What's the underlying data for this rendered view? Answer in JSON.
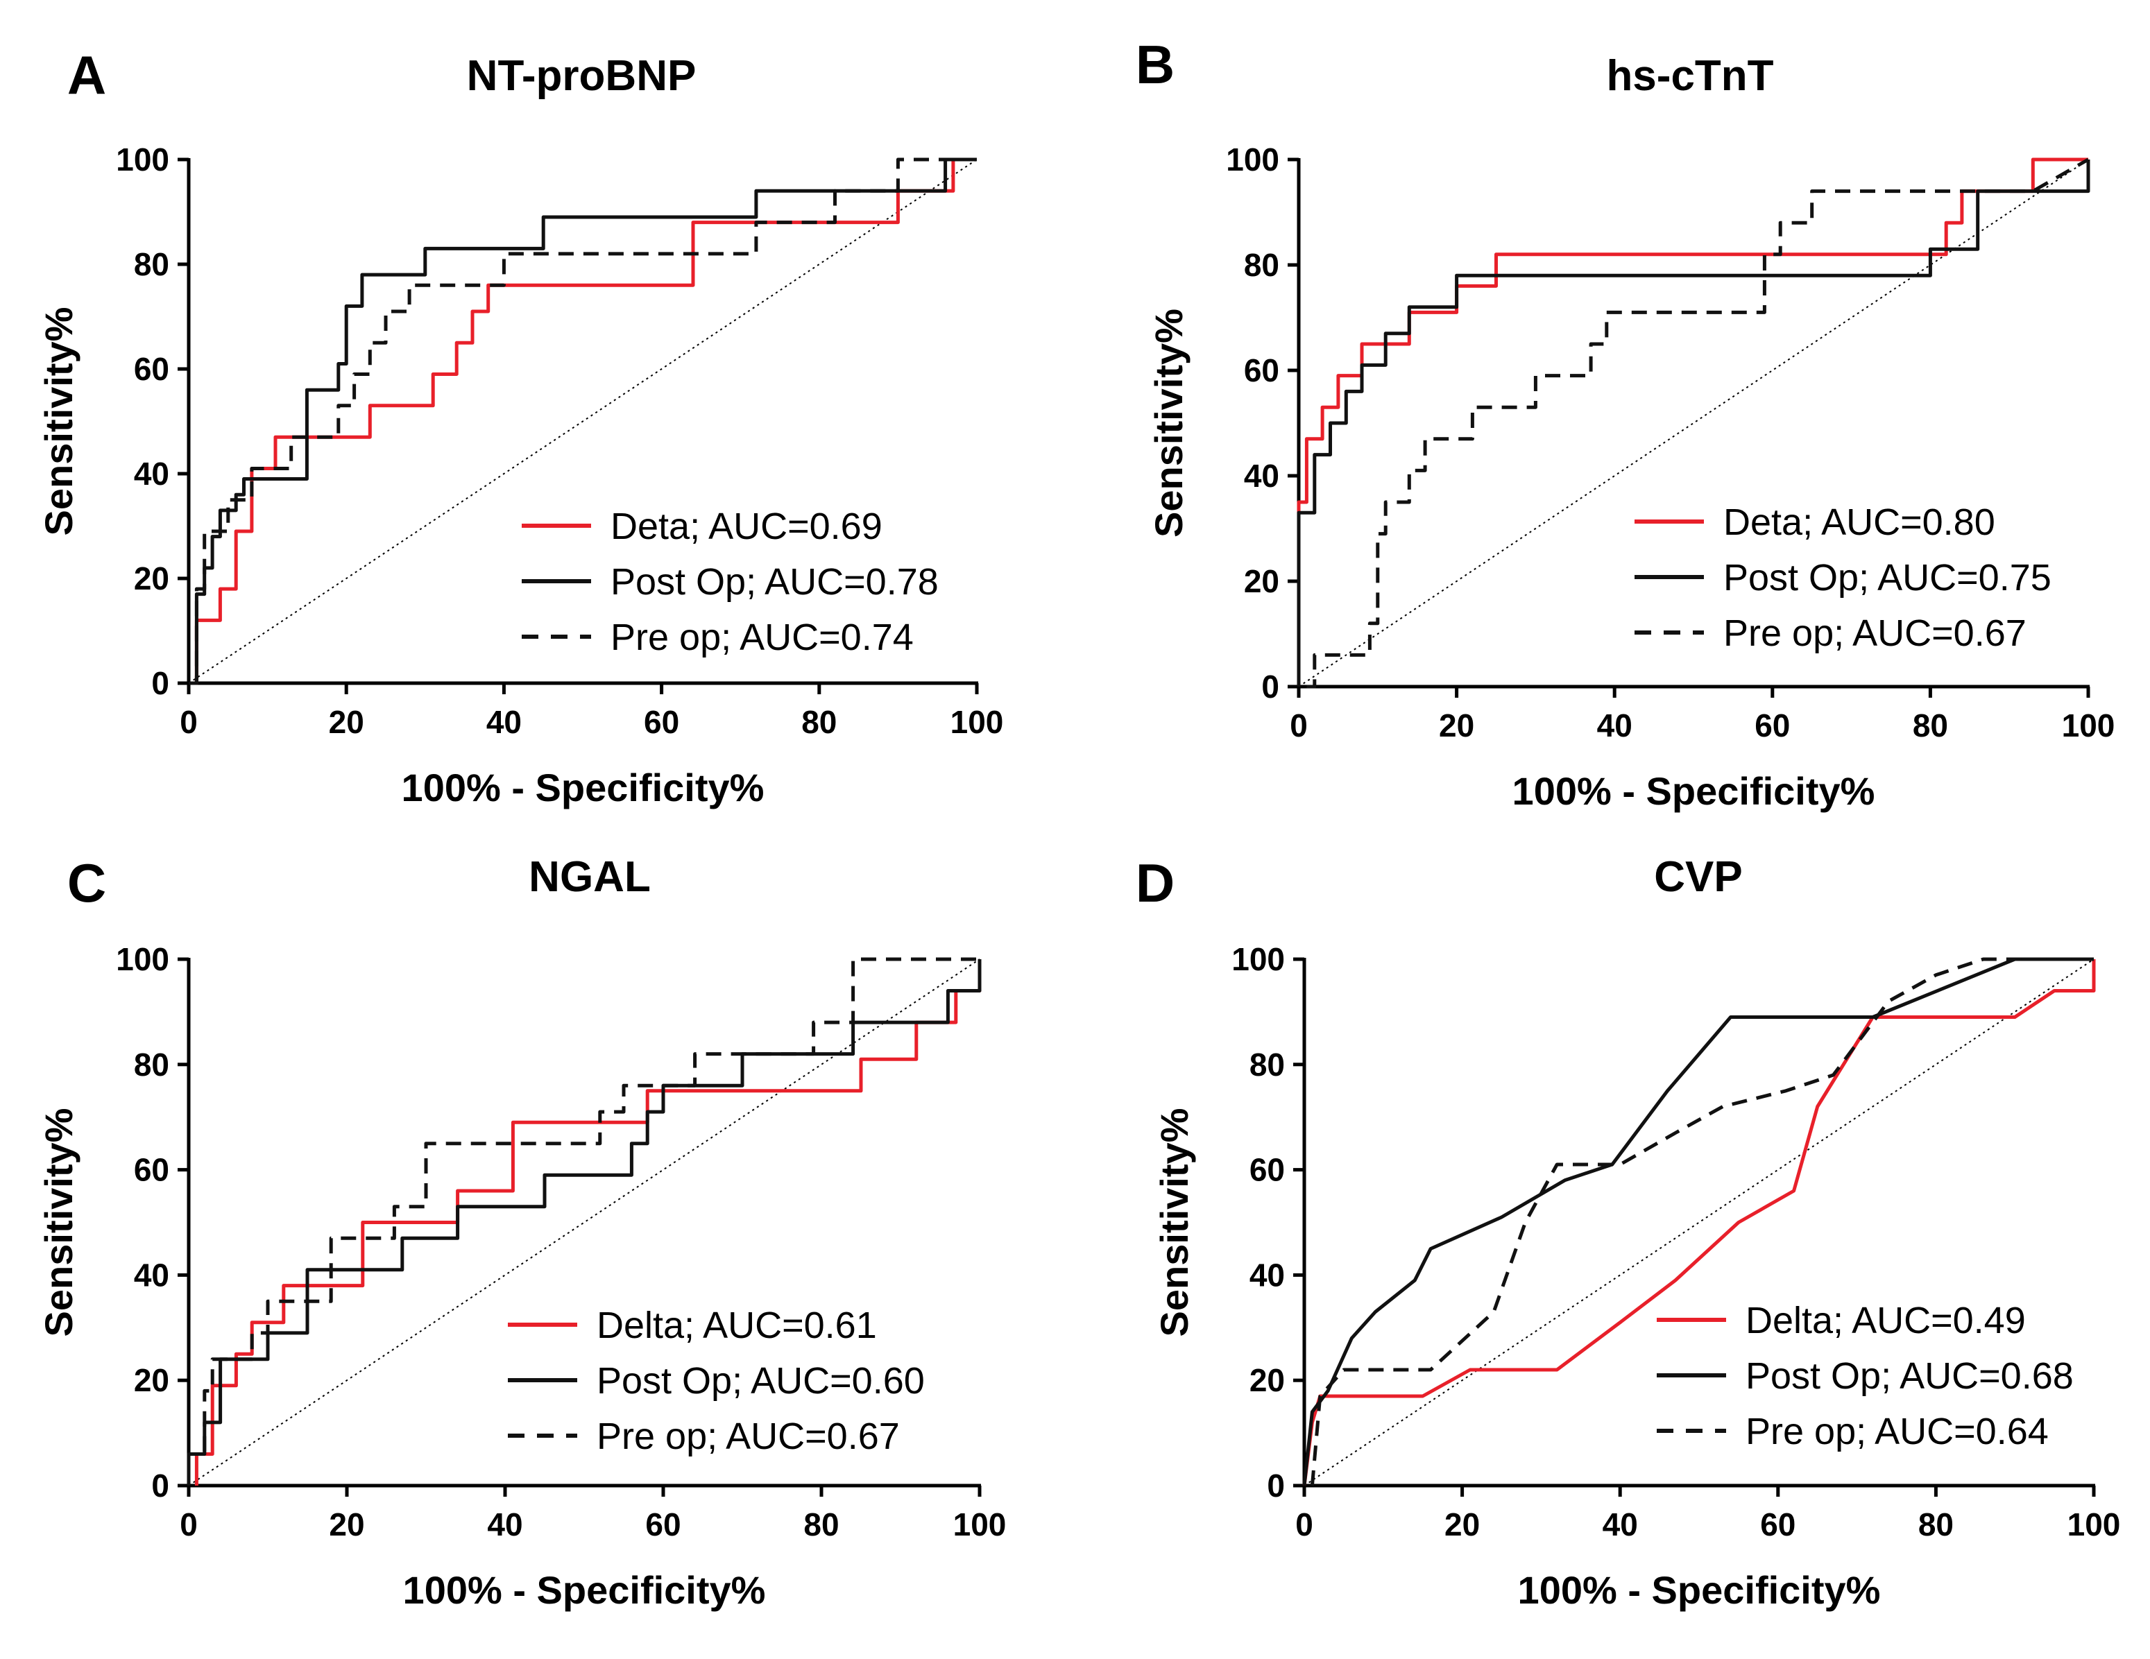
{
  "figure": {
    "colors": {
      "red": "#e8202a",
      "black": "#111111"
    }
  },
  "chart_data": [
    {
      "type": "line",
      "panel_letter": "A",
      "title": "NT-proBNP",
      "xlabel": "100% - Specificity%",
      "ylabel": "Sensitivity%",
      "xlim": [
        0,
        100
      ],
      "ylim": [
        0,
        100
      ],
      "x_ticks": [
        "0",
        "20",
        "40",
        "60",
        "80",
        "100"
      ],
      "y_ticks": [
        "0",
        "20",
        "40",
        "60",
        "80",
        "100"
      ],
      "series": [
        {
          "name": "Deta; AUC=0.69",
          "color": "#e8202a",
          "style": "solid",
          "step": true,
          "x": [
            0,
            1,
            1,
            4,
            4,
            6,
            6,
            8,
            8,
            11,
            11,
            23,
            23,
            31,
            31,
            34,
            34,
            36,
            36,
            38,
            38,
            64,
            64,
            90,
            90,
            97,
            97,
            100
          ],
          "y": [
            0,
            0,
            12,
            12,
            18,
            18,
            29,
            29,
            41,
            41,
            47,
            47,
            53,
            53,
            59,
            59,
            65,
            65,
            71,
            71,
            76,
            76,
            88,
            88,
            94,
            94,
            100,
            100
          ]
        },
        {
          "name": "Post Op; AUC=0.78",
          "color": "#111111",
          "style": "solid",
          "step": true,
          "x": [
            0,
            1,
            1,
            2,
            2,
            3,
            3,
            4,
            4,
            6,
            6,
            7,
            7,
            15,
            15,
            19,
            19,
            20,
            20,
            22,
            22,
            30,
            30,
            45,
            45,
            72,
            72,
            96,
            96,
            100
          ],
          "y": [
            0,
            0,
            17,
            17,
            22,
            22,
            28,
            28,
            33,
            33,
            36,
            36,
            39,
            39,
            56,
            56,
            61,
            61,
            72,
            72,
            78,
            78,
            83,
            83,
            89,
            89,
            94,
            94,
            100,
            100
          ]
        },
        {
          "name": "Pre op; AUC=0.74",
          "color": "#111111",
          "style": "dashed",
          "step": true,
          "x": [
            0,
            1,
            1,
            2,
            2,
            5,
            5,
            8,
            8,
            13,
            13,
            19,
            19,
            21,
            21,
            23,
            23,
            25,
            25,
            28,
            28,
            40,
            40,
            72,
            72,
            82,
            82,
            90,
            90,
            95,
            95,
            100
          ],
          "y": [
            0,
            0,
            18,
            18,
            29,
            29,
            35,
            35,
            41,
            41,
            47,
            47,
            53,
            53,
            59,
            59,
            65,
            65,
            71,
            71,
            76,
            76,
            82,
            82,
            88,
            88,
            94,
            94,
            100,
            100,
            100,
            100
          ]
        }
      ]
    },
    {
      "type": "line",
      "panel_letter": "B",
      "title": "hs-cTnT",
      "xlabel": "100% - Specificity%",
      "ylabel": "Sensitivity%",
      "xlim": [
        0,
        100
      ],
      "ylim": [
        0,
        100
      ],
      "x_ticks": [
        "0",
        "20",
        "40",
        "60",
        "80",
        "100"
      ],
      "y_ticks": [
        "0",
        "20",
        "40",
        "60",
        "80",
        "100"
      ],
      "series": [
        {
          "name": "Deta; AUC=0.80",
          "color": "#e8202a",
          "style": "solid",
          "step": true,
          "x": [
            0,
            0,
            1,
            1,
            3,
            3,
            5,
            5,
            8,
            8,
            9,
            9,
            14,
            14,
            20,
            20,
            25,
            25,
            82,
            82,
            84,
            84,
            93,
            93,
            100
          ],
          "y": [
            0,
            35,
            35,
            47,
            47,
            53,
            53,
            59,
            59,
            65,
            65,
            65,
            65,
            71,
            71,
            76,
            76,
            82,
            82,
            88,
            88,
            94,
            94,
            100,
            100
          ]
        },
        {
          "name": "Post Op; AUC=0.75",
          "color": "#111111",
          "style": "solid",
          "step": true,
          "x": [
            0,
            0,
            2,
            2,
            4,
            4,
            6,
            6,
            8,
            8,
            11,
            11,
            14,
            14,
            20,
            20,
            80,
            80,
            86,
            86,
            100,
            100
          ],
          "y": [
            0,
            33,
            33,
            44,
            44,
            50,
            50,
            56,
            56,
            61,
            61,
            67,
            67,
            72,
            72,
            78,
            78,
            83,
            83,
            94,
            94,
            100
          ]
        },
        {
          "name": "Pre op; AUC=0.67",
          "color": "#111111",
          "style": "dashed",
          "step": true,
          "x": [
            1,
            2,
            2,
            9,
            9,
            10,
            10,
            11,
            11,
            14,
            14,
            16,
            16,
            22,
            22,
            30,
            30,
            37,
            37,
            39,
            39,
            59,
            59,
            61,
            61,
            65,
            65,
            68,
            68,
            93,
            100
          ],
          "y": [
            0,
            0,
            6,
            6,
            12,
            12,
            29,
            29,
            35,
            35,
            41,
            41,
            47,
            47,
            53,
            53,
            59,
            59,
            65,
            65,
            71,
            71,
            82,
            82,
            88,
            88,
            94,
            94,
            94,
            94,
            100
          ]
        }
      ]
    },
    {
      "type": "line",
      "panel_letter": "C",
      "title": "NGAL",
      "xlabel": "100% - Specificity%",
      "ylabel": "Sensitivity%",
      "xlim": [
        0,
        100
      ],
      "ylim": [
        0,
        100
      ],
      "x_ticks": [
        "0",
        "20",
        "40",
        "60",
        "80",
        "100"
      ],
      "y_ticks": [
        "0",
        "20",
        "40",
        "60",
        "80",
        "100"
      ],
      "series": [
        {
          "name": "Delta; AUC=0.61",
          "color": "#e8202a",
          "style": "solid",
          "step": true,
          "x": [
            1,
            1,
            3,
            3,
            6,
            6,
            8,
            8,
            12,
            12,
            22,
            22,
            34,
            34,
            41,
            41,
            58,
            58,
            61,
            61,
            85,
            85,
            88,
            88,
            92,
            92,
            97,
            97,
            100,
            100
          ],
          "y": [
            0,
            6,
            6,
            19,
            19,
            25,
            25,
            31,
            31,
            38,
            38,
            50,
            50,
            56,
            56,
            69,
            69,
            75,
            75,
            75,
            75,
            81,
            81,
            81,
            81,
            88,
            88,
            94,
            94,
            100
          ]
        },
        {
          "name": "Post Op; AUC=0.60",
          "color": "#111111",
          "style": "solid",
          "step": true,
          "x": [
            0,
            0,
            2,
            2,
            4,
            4,
            10,
            10,
            15,
            15,
            27,
            27,
            34,
            34,
            45,
            45,
            56,
            56,
            58,
            58,
            60,
            60,
            70,
            70,
            84,
            84,
            96,
            96,
            100,
            100
          ],
          "y": [
            0,
            6,
            6,
            12,
            12,
            24,
            24,
            29,
            29,
            41,
            41,
            47,
            47,
            53,
            53,
            59,
            59,
            65,
            65,
            71,
            71,
            76,
            76,
            82,
            82,
            88,
            88,
            94,
            94,
            100
          ]
        },
        {
          "name": "Pre op; AUC=0.67",
          "color": "#111111",
          "style": "dashed",
          "step": true,
          "x": [
            0,
            0,
            2,
            2,
            3,
            3,
            8,
            8,
            10,
            10,
            18,
            18,
            26,
            26,
            30,
            30,
            52,
            52,
            55,
            55,
            64,
            64,
            79,
            79,
            84,
            84,
            100
          ],
          "y": [
            0,
            6,
            6,
            18,
            18,
            24,
            24,
            29,
            29,
            35,
            35,
            47,
            47,
            53,
            53,
            65,
            65,
            71,
            71,
            76,
            76,
            82,
            82,
            88,
            88,
            100,
            100
          ]
        }
      ]
    },
    {
      "type": "line",
      "panel_letter": "D",
      "title": "CVP",
      "xlabel": "100% - Specificity%",
      "ylabel": "Sensitivity%",
      "xlim": [
        0,
        100
      ],
      "ylim": [
        0,
        100
      ],
      "x_ticks": [
        "0",
        "20",
        "40",
        "60",
        "80",
        "100"
      ],
      "y_ticks": [
        "0",
        "20",
        "40",
        "60",
        "80",
        "100"
      ],
      "series": [
        {
          "name": "Delta; AUC=0.49",
          "color": "#e8202a",
          "style": "solid",
          "step": false,
          "x": [
            0,
            1,
            2,
            15,
            21,
            32,
            40,
            47,
            55,
            62,
            65,
            72,
            90,
            95,
            100,
            100
          ],
          "y": [
            0,
            12,
            17,
            17,
            22,
            22,
            31,
            39,
            50,
            56,
            72,
            89,
            89,
            94,
            94,
            100
          ]
        },
        {
          "name": "Post Op; AUC=0.68",
          "color": "#111111",
          "style": "solid",
          "step": false,
          "x": [
            0,
            1,
            3,
            6,
            9,
            14,
            16,
            25,
            33,
            39,
            46,
            54,
            72,
            90,
            100
          ],
          "y": [
            0,
            14,
            18,
            28,
            33,
            39,
            45,
            51,
            58,
            61,
            75,
            89,
            89,
            100,
            100
          ]
        },
        {
          "name": "Pre op; AUC=0.64",
          "color": "#111111",
          "style": "dashed",
          "step": false,
          "x": [
            1,
            2,
            5,
            16,
            24,
            28,
            32,
            40,
            47,
            53,
            61,
            67,
            74,
            80,
            86,
            100
          ],
          "y": [
            0,
            17,
            22,
            22,
            33,
            50,
            61,
            61,
            67,
            72,
            75,
            78,
            92,
            97,
            100,
            100
          ]
        }
      ]
    }
  ]
}
